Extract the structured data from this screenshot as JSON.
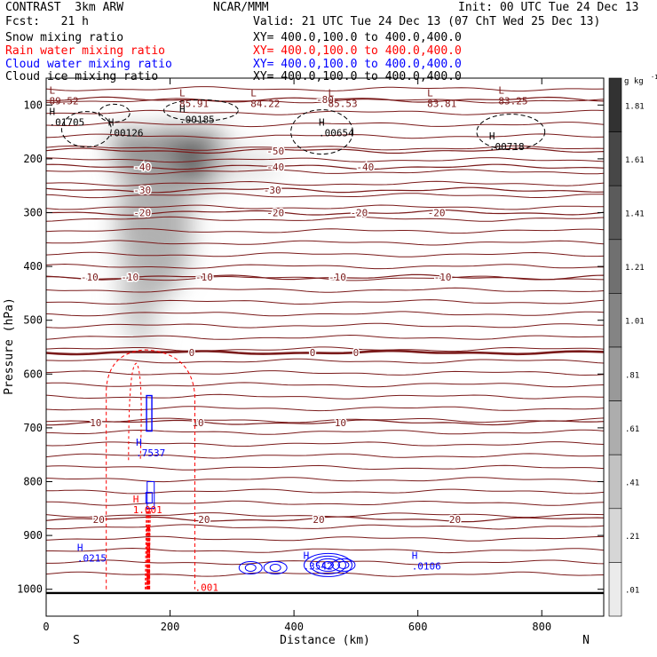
{
  "header": {
    "left_title": "CONTRAST  3km ARW",
    "center_title": "NCAR/MMM",
    "init": "Init: 00 UTC Tue 24 Dec 13",
    "fcst": "Fcst:   21 h",
    "valid": "Valid: 21 UTC Tue 24 Dec 13 (07 ChT Wed 25 Dec 13)"
  },
  "fields": [
    {
      "name": "Snow mixing ratio",
      "xy": "XY= 400.0,100.0 to 400.0,400.0",
      "color": "#000000"
    },
    {
      "name": "Rain water mixing ratio",
      "xy": "XY= 400.0,100.0 to 400.0,400.0",
      "color": "#ff0000"
    },
    {
      "name": "Cloud water mixing ratio",
      "xy": "XY= 400.0,100.0 to 400.0,400.0",
      "color": "#0000ff"
    },
    {
      "name": "Cloud ice mixing ratio",
      "xy": "XY= 400.0,100.0 to 400.0,400.0",
      "color": "#000000"
    }
  ],
  "colors": {
    "temperature_contour": "#7a1a1a",
    "rain_contour": "#ff0000",
    "cloud_water_contour": "#0000ff",
    "ice_contour": "#000000"
  },
  "chart_data": {
    "type": "heatmap",
    "xlabel": "Distance (km)",
    "ylabel": "Pressure (hPa)",
    "xlim": [
      0,
      900
    ],
    "ylim": [
      1050,
      50
    ],
    "x_ticks": [
      0,
      200,
      400,
      600,
      800
    ],
    "y_ticks": [
      100,
      200,
      300,
      400,
      500,
      600,
      700,
      800,
      900,
      1000
    ],
    "x_tick_labels": [
      "0",
      "200",
      "400",
      "600",
      "800"
    ],
    "y_tick_labels": [
      "100",
      "200",
      "300",
      "400",
      "500",
      "600",
      "700",
      "800",
      "900",
      "1000"
    ],
    "left_end_label": "S",
    "right_end_label": "N",
    "colorbar": {
      "unit": "g kg",
      "unit_exp": "-1",
      "labels": [
        "1.81",
        "1.61",
        "1.41",
        "1.21",
        "1.01",
        ".81",
        ".61",
        ".41",
        ".21",
        ".01"
      ],
      "min": 0.01,
      "max": 2.01
    },
    "snow_shading": [
      {
        "x": 200,
        "p": 200,
        "rx": 55,
        "rp": 55,
        "value": 1.41
      },
      {
        "x": 255,
        "p": 200,
        "rx": 45,
        "rp": 50,
        "value": 1.61
      },
      {
        "x": 135,
        "p": 185,
        "rx": 30,
        "rp": 40,
        "value": 1.21
      },
      {
        "x": 175,
        "p": 320,
        "rx": 60,
        "rp": 140,
        "value": 0.81
      },
      {
        "x": 150,
        "p": 450,
        "rx": 30,
        "rp": 80,
        "value": 0.61
      },
      {
        "x": 155,
        "p": 520,
        "rx": 20,
        "rp": 40,
        "value": 0.41
      },
      {
        "x": 320,
        "p": 210,
        "rx": 60,
        "rp": 30,
        "value": 0.21
      }
    ],
    "temperature_contours": [
      {
        "label": "-80",
        "p": 90,
        "label_x": [
          450
        ]
      },
      {
        "label": "-50",
        "p": 185,
        "label_x": [
          370
        ]
      },
      {
        "label": "-40",
        "p": 215,
        "label_x": [
          155,
          370,
          515
        ]
      },
      {
        "label": "-30",
        "p": 258,
        "label_x": [
          155,
          365
        ]
      },
      {
        "label": "-20",
        "p": 300,
        "label_x": [
          155,
          370,
          505,
          630
        ]
      },
      {
        "label": "-10",
        "p": 420,
        "label_x": [
          70,
          135,
          255,
          470,
          640
        ]
      },
      {
        "label": "0",
        "p": 560,
        "label_x": [
          235,
          430,
          500
        ],
        "bold": true
      },
      {
        "label": "10",
        "p": 690,
        "label_x": [
          80,
          245,
          475
        ]
      },
      {
        "label": "20",
        "p": 870,
        "label_x": [
          85,
          255,
          440,
          660
        ]
      }
    ],
    "annotations": [
      {
        "type": "L",
        "x": 5,
        "p": 95,
        "value": "89.52"
      },
      {
        "type": "L",
        "x": 215,
        "p": 100,
        "value": "85.91"
      },
      {
        "type": "L",
        "x": 330,
        "p": 100,
        "value": "84.22"
      },
      {
        "type": "L",
        "x": 455,
        "p": 100,
        "value": "85.53"
      },
      {
        "type": "L",
        "x": 615,
        "p": 100,
        "value": "83.81"
      },
      {
        "type": "L",
        "x": 730,
        "p": 95,
        "value": "83.25"
      },
      {
        "type": "H",
        "x": 5,
        "p": 135,
        "value": ".01705"
      },
      {
        "type": "H",
        "x": 100,
        "p": 155,
        "value": ".00126"
      },
      {
        "type": "H",
        "x": 215,
        "p": 130,
        "value": ".00185"
      },
      {
        "type": "H",
        "x": 440,
        "p": 155,
        "value": ".00654"
      },
      {
        "type": "H",
        "x": 715,
        "p": 180,
        "value": ".00718"
      },
      {
        "type": "H",
        "x": 145,
        "p": 750,
        "value": ".7537",
        "series": "cloud_water"
      },
      {
        "type": "H",
        "x": 140,
        "p": 855,
        "value": "1.001",
        "series": "rain"
      },
      {
        "type": "H",
        "x": 50,
        "p": 945,
        "value": ".0215",
        "series": "cloud_water"
      },
      {
        "type": "H",
        "x": 415,
        "p": 960,
        "value": ".3542",
        "series": "cloud_water"
      },
      {
        "type": "H",
        "x": 590,
        "p": 960,
        "value": ".0106",
        "series": "cloud_water"
      },
      {
        "type": "contour",
        "x": 240,
        "p": 1000,
        "value": ".001",
        "series": "rain"
      }
    ]
  }
}
